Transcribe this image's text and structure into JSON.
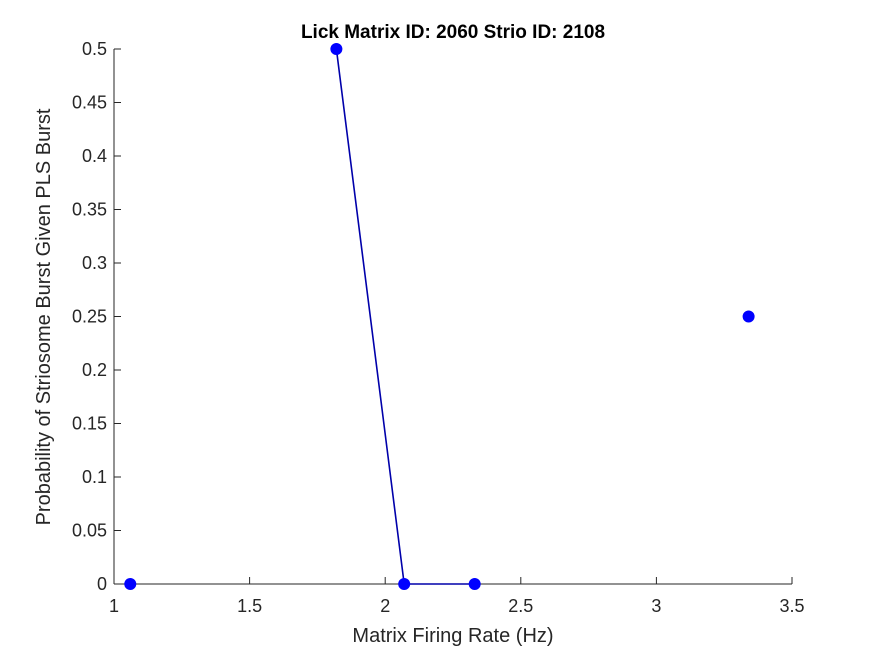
{
  "chart_data": {
    "type": "line",
    "title": "Lick Matrix ID: 2060 Strio ID: 2108",
    "xlabel": "Matrix Firing Rate (Hz)",
    "ylabel": "Probability of Striosome Burst Given PLS Burst",
    "xlim": [
      1,
      3.5
    ],
    "ylim": [
      0,
      0.5
    ],
    "x_ticks": [
      1,
      1.5,
      2,
      2.5,
      3,
      3.5
    ],
    "x_tick_labels": [
      "1",
      "1.5",
      "2",
      "2.5",
      "3",
      "3.5"
    ],
    "y_ticks": [
      0,
      0.05,
      0.1,
      0.15,
      0.2,
      0.25,
      0.3,
      0.35,
      0.4,
      0.45,
      0.5
    ],
    "y_tick_labels": [
      "0",
      "0.05",
      "0.1",
      "0.15",
      "0.2",
      "0.25",
      "0.3",
      "0.35",
      "0.4",
      "0.45",
      "0.5"
    ],
    "grid": false,
    "legend": "none",
    "series": [
      {
        "color": "#0000ff",
        "marker_color": "#0000ff",
        "line_color": "#0000aa",
        "segments": [
          [
            {
              "x": 1.06,
              "y": 0
            }
          ],
          [
            {
              "x": 1.82,
              "y": 0.5
            },
            {
              "x": 2.07,
              "y": 0
            },
            {
              "x": 2.33,
              "y": 0
            }
          ],
          [
            {
              "x": 3.34,
              "y": 0.25
            }
          ]
        ]
      }
    ]
  }
}
